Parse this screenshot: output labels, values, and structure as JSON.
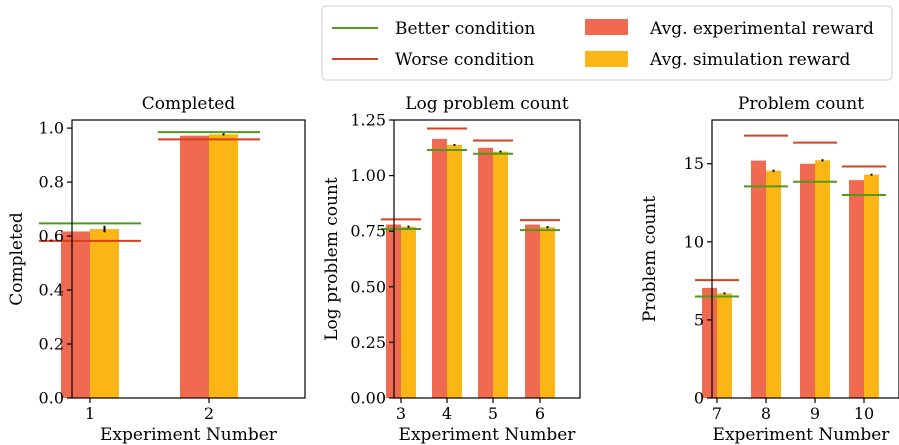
{
  "colors": {
    "experimental": "#ef6a50",
    "simulation": "#fbb615",
    "better": "#4f9a1a",
    "worse": "#d9411c",
    "errorbar": "#000000"
  },
  "legend": {
    "better_label": "Better condition",
    "worse_label": "Worse condition",
    "experimental_label": "Avg. experimental reward",
    "simulation_label": "Avg. simulation reward"
  },
  "chart_data": [
    {
      "type": "bar",
      "title": "Completed",
      "xlabel": "Experiment Number",
      "ylabel": "Completed",
      "categories": [
        "1",
        "2"
      ],
      "ylim": [
        0,
        1.03
      ],
      "yticks": [
        "0.0",
        "0.2",
        "0.4",
        "0.6",
        "0.8",
        "1.0"
      ],
      "series": [
        {
          "name": "Avg. experimental reward",
          "values": [
            0.617,
            0.972
          ]
        },
        {
          "name": "Avg. simulation reward",
          "values": [
            0.626,
            0.977
          ],
          "errors": [
            0.012,
            0.004
          ]
        }
      ],
      "better_condition": [
        0.647,
        0.985
      ],
      "worse_condition": [
        0.582,
        0.958
      ]
    },
    {
      "type": "bar",
      "title": "Log problem count",
      "xlabel": "Experiment Number",
      "ylabel": "Log problem count",
      "categories": [
        "3",
        "4",
        "5",
        "6"
      ],
      "ylim": [
        0,
        1.25
      ],
      "yticks": [
        "0.00",
        "0.25",
        "0.50",
        "0.75",
        "1.00",
        "1.25"
      ],
      "series": [
        {
          "name": "Avg. experimental reward",
          "values": [
            0.78,
            1.165,
            1.125,
            0.78
          ]
        },
        {
          "name": "Avg. simulation reward",
          "values": [
            0.77,
            1.138,
            1.108,
            0.768
          ],
          "errors": [
            0.005,
            0.004,
            0.004,
            0.005
          ]
        }
      ],
      "better_condition": [
        0.76,
        1.115,
        1.098,
        0.755
      ],
      "worse_condition": [
        0.803,
        1.212,
        1.158,
        0.8
      ]
    },
    {
      "type": "bar",
      "title": "Problem count",
      "xlabel": "Experiment Number",
      "ylabel": "Problem count",
      "categories": [
        "7",
        "8",
        "9",
        "10"
      ],
      "ylim": [
        0,
        17.8
      ],
      "yticks": [
        "0",
        "5",
        "10",
        "15"
      ],
      "series": [
        {
          "name": "Avg. experimental reward",
          "values": [
            7.05,
            15.2,
            15.0,
            13.95
          ]
        },
        {
          "name": "Avg. simulation reward",
          "values": [
            6.7,
            14.55,
            15.22,
            14.3
          ],
          "errors": [
            0.06,
            0.07,
            0.07,
            0.06
          ]
        }
      ],
      "better_condition": [
        6.5,
        13.55,
        13.85,
        13.0
      ],
      "worse_condition": [
        7.55,
        16.8,
        16.35,
        14.82
      ]
    }
  ]
}
